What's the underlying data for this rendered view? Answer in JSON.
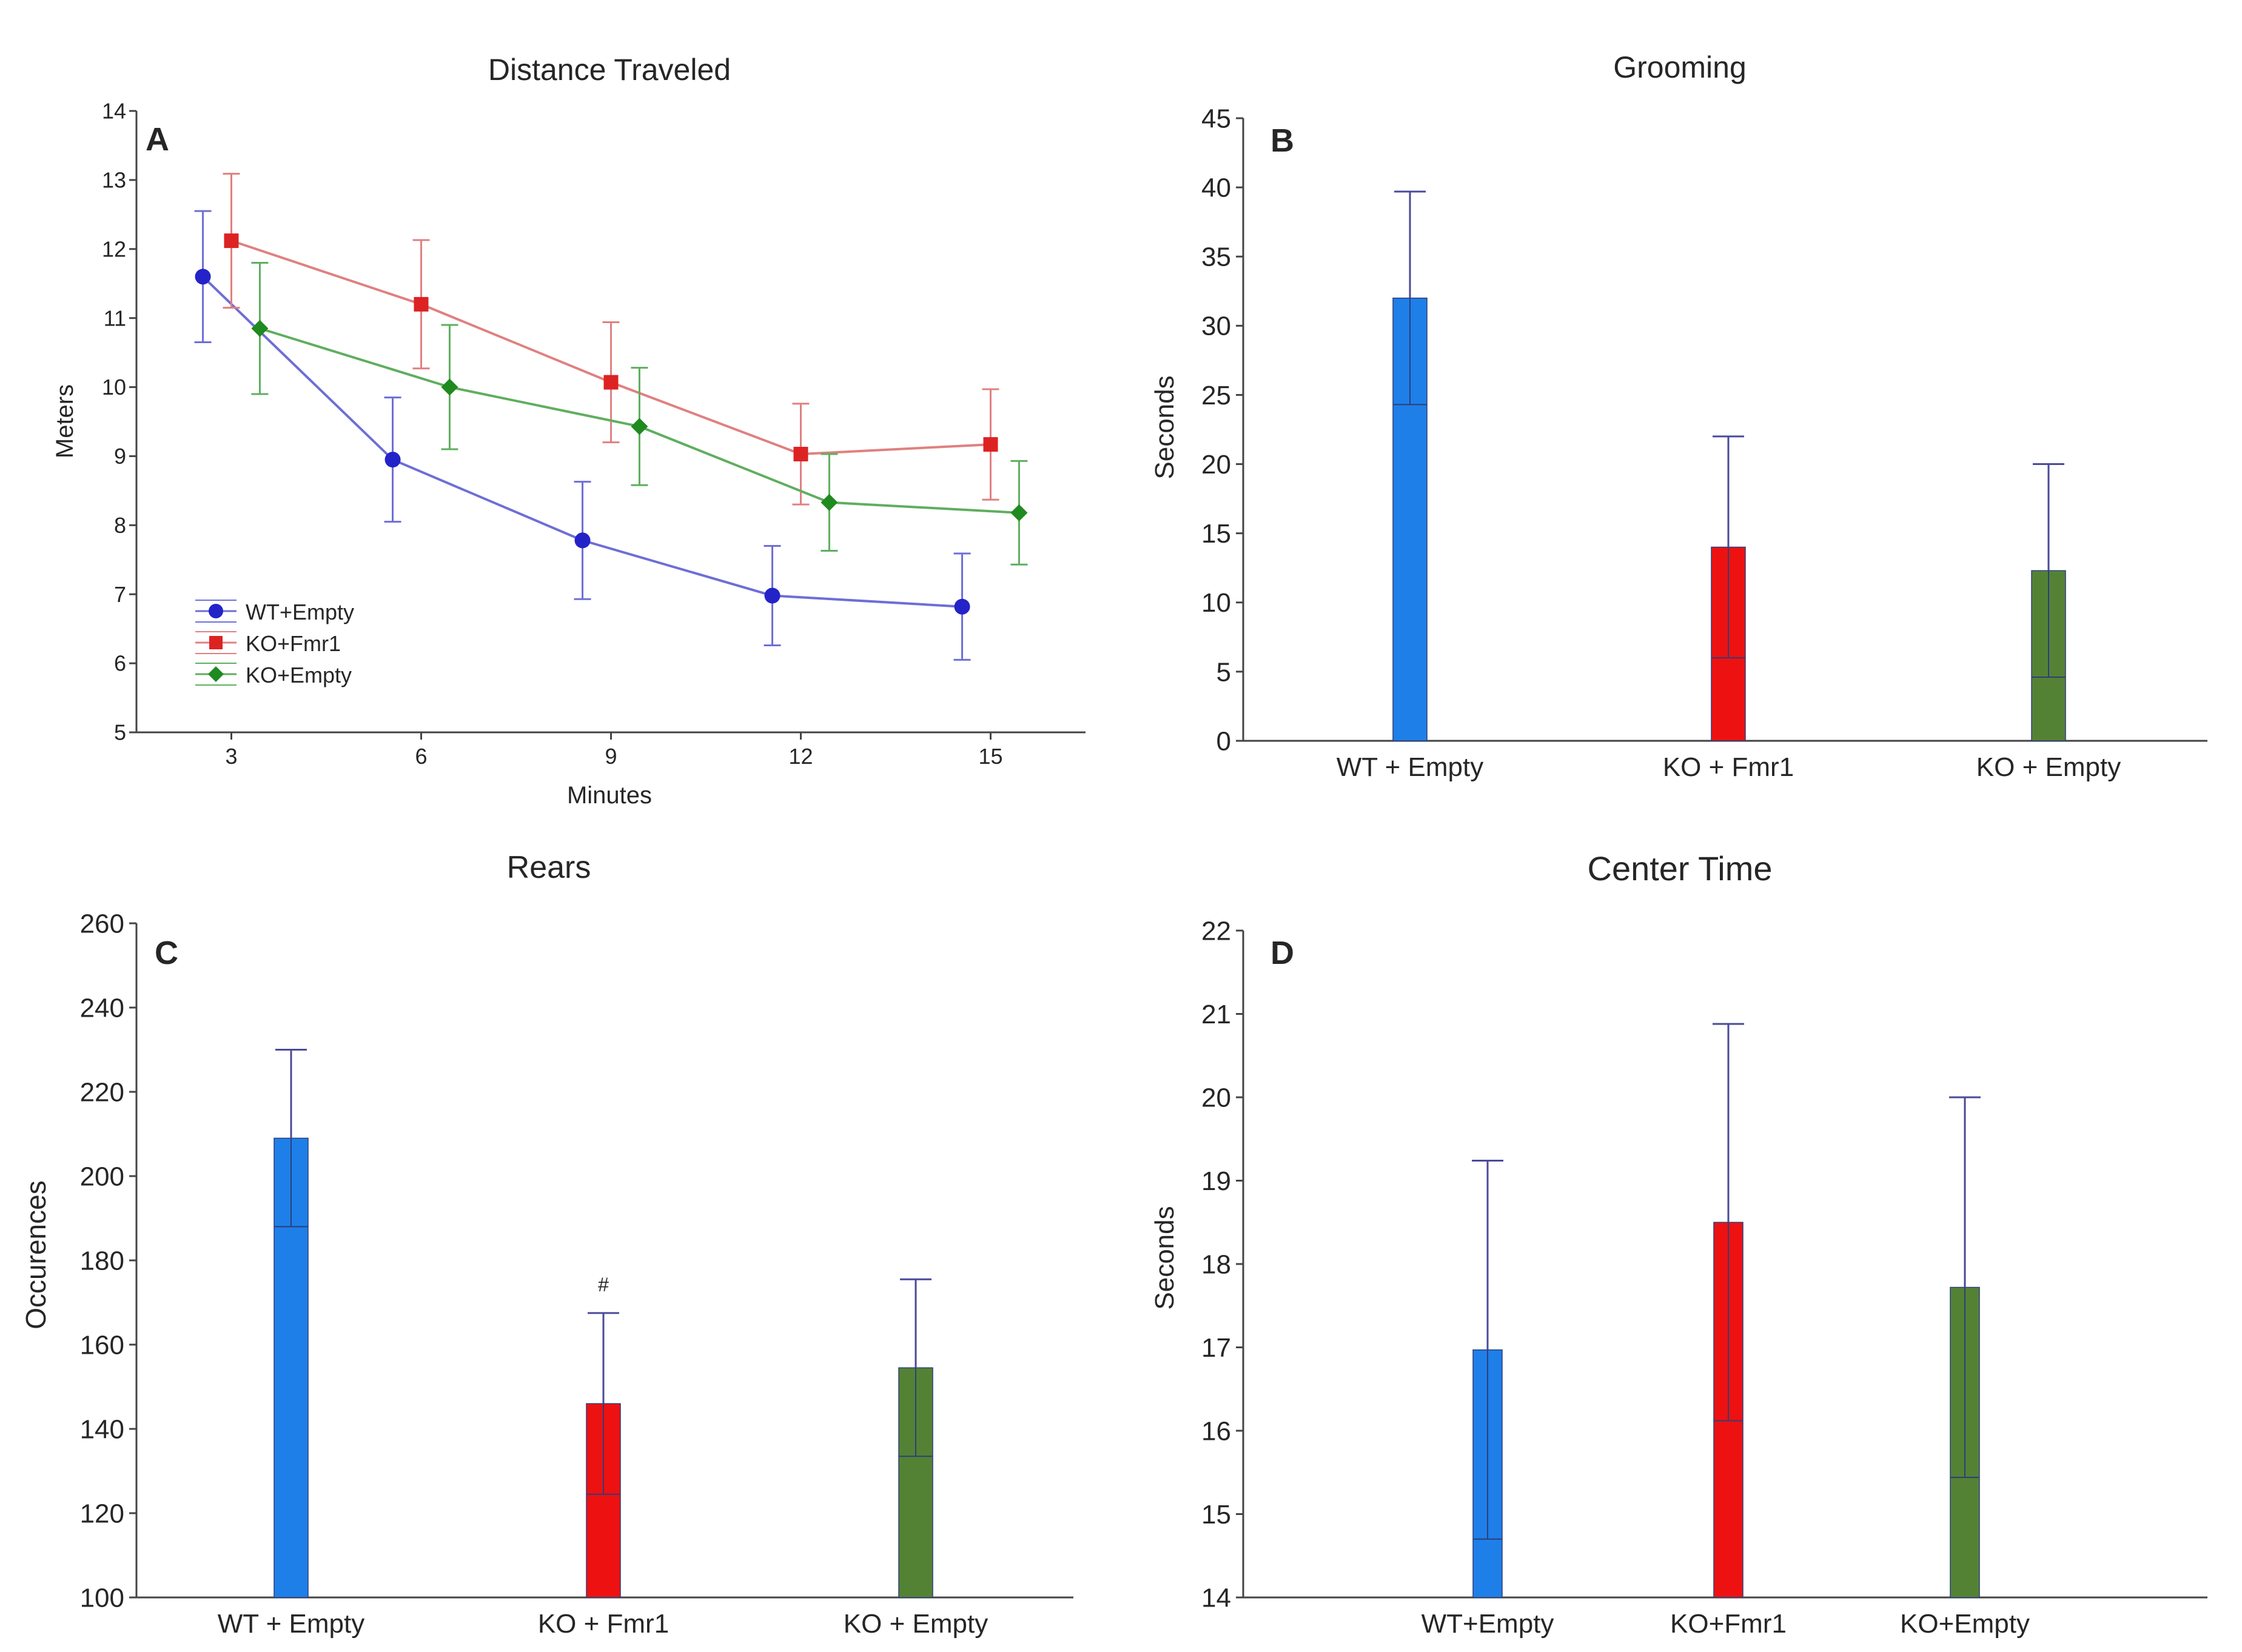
{
  "chart_data": [
    {
      "id": "A",
      "type": "line",
      "panel_label": "A",
      "title": "Distance Traveled",
      "xlabel": "Minutes",
      "ylabel": "Meters",
      "ylim": [
        5,
        14
      ],
      "yticks": [
        "5",
        "6",
        "7",
        "8",
        "9",
        "10",
        "11",
        "12",
        "13",
        "14"
      ],
      "xlim": [
        1.5,
        16.5
      ],
      "xticks": [
        "3",
        "6",
        "9",
        "12",
        "15"
      ],
      "x": [
        3,
        6,
        9,
        12,
        15
      ],
      "series": [
        {
          "name": "WT+Empty",
          "color": "#2323c8",
          "line_color": "#6e6ed6",
          "marker": "circle",
          "offset": -0.45,
          "values": [
            11.6,
            8.95,
            7.78,
            6.98,
            6.82
          ],
          "errors": [
            0.95,
            0.9,
            0.85,
            0.72,
            0.77
          ]
        },
        {
          "name": "KO+Fmr1",
          "color": "#dd2222",
          "line_color": "#e08080",
          "marker": "square",
          "offset": 0,
          "values": [
            12.12,
            11.2,
            10.07,
            9.03,
            9.17
          ],
          "errors": [
            0.97,
            0.93,
            0.87,
            0.73,
            0.8
          ]
        },
        {
          "name": "KO+Empty",
          "color": "#1f8a1f",
          "line_color": "#5fae5f",
          "marker": "diamond",
          "offset": 0.45,
          "values": [
            10.85,
            10.0,
            9.43,
            8.33,
            8.18
          ],
          "errors": [
            0.95,
            0.9,
            0.85,
            0.7,
            0.75
          ]
        }
      ]
    },
    {
      "id": "B",
      "type": "bar",
      "panel_label": "B",
      "title": "Grooming",
      "ylabel": "Seconds",
      "ylim": [
        0,
        45
      ],
      "yticks": [
        "0",
        "5",
        "10",
        "15",
        "20",
        "25",
        "30",
        "35",
        "40",
        "45"
      ],
      "categories": [
        "WT + Empty",
        "KO + Fmr1",
        "KO + Empty"
      ],
      "values": [
        32,
        14,
        12.3
      ],
      "errors": [
        7.7,
        8,
        7.7
      ],
      "colors": [
        "#1f7fe8",
        "#ee1111",
        "#548235"
      ]
    },
    {
      "id": "C",
      "type": "bar",
      "panel_label": "C",
      "title": "Rears",
      "ylabel": "Occurences",
      "ylim": [
        100,
        260
      ],
      "yticks": [
        "100",
        "120",
        "140",
        "160",
        "180",
        "200",
        "220",
        "240",
        "260"
      ],
      "categories": [
        "WT + Empty",
        "KO + Fmr1",
        "KO + Empty"
      ],
      "values": [
        209,
        146,
        154.5
      ],
      "errors": [
        21,
        21.5,
        21
      ],
      "colors": [
        "#1f7fe8",
        "#ee1111",
        "#548235"
      ],
      "annotations": [
        {
          "text": "#",
          "category": "KO + Fmr1"
        }
      ]
    },
    {
      "id": "D",
      "type": "bar",
      "panel_label": "D",
      "title": "Center Time",
      "ylabel": "Seconds",
      "ylim": [
        14,
        22
      ],
      "yticks": [
        "14",
        "15",
        "16",
        "17",
        "18",
        "19",
        "20",
        "21",
        "22"
      ],
      "categories": [
        "WT+Empty",
        "KO+Fmr1",
        "KO+Empty"
      ],
      "values": [
        16.97,
        18.5,
        17.72
      ],
      "errors": [
        2.27,
        2.38,
        2.28
      ],
      "colors": [
        "#1f7fe8",
        "#ee1111",
        "#548235"
      ]
    }
  ]
}
